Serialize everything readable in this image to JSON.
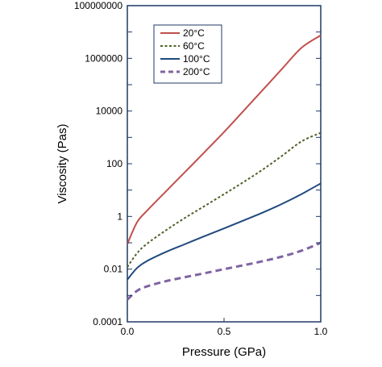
{
  "chart_data": {
    "type": "line",
    "title": "",
    "xlabel": "Pressure (GPa)",
    "ylabel": "Viscosity (Pas)",
    "xlim": [
      0,
      1
    ],
    "ylim": [
      0.0001,
      100000000
    ],
    "yscale": "log",
    "grid": false,
    "legend_position": "top-left",
    "x_ticks": [
      {
        "value": 0,
        "label": "0.0"
      },
      {
        "value": 0.5,
        "label": "0.5"
      },
      {
        "value": 1,
        "label": "1.0"
      }
    ],
    "y_ticks": [
      {
        "value": 0.0001,
        "label": "0.0001"
      },
      {
        "value": 0.01,
        "label": "0.01"
      },
      {
        "value": 1,
        "label": "1"
      },
      {
        "value": 100,
        "label": "100"
      },
      {
        "value": 10000,
        "label": "10000"
      },
      {
        "value": 1000000,
        "label": "1000000"
      },
      {
        "value": 100000000,
        "label": "100000000"
      }
    ],
    "series": [
      {
        "name": "20°C",
        "color": "#c0504d",
        "dash": "solid",
        "points": [
          [
            0,
            0.09
          ],
          [
            0.05,
            0.6
          ],
          [
            0.1,
            1.6
          ],
          [
            0.2,
            9
          ],
          [
            0.3,
            50
          ],
          [
            0.4,
            280
          ],
          [
            0.5,
            1600
          ],
          [
            0.6,
            10000
          ],
          [
            0.7,
            63000
          ],
          [
            0.8,
            400000
          ],
          [
            0.9,
            2500000
          ],
          [
            1.0,
            7500000
          ]
        ]
      },
      {
        "name": "60°C",
        "color": "#4f6228",
        "dash": "short-dash",
        "points": [
          [
            0,
            0.012
          ],
          [
            0.05,
            0.04
          ],
          [
            0.1,
            0.09
          ],
          [
            0.2,
            0.3
          ],
          [
            0.3,
            0.9
          ],
          [
            0.4,
            2.5
          ],
          [
            0.5,
            7
          ],
          [
            0.6,
            20
          ],
          [
            0.7,
            60
          ],
          [
            0.8,
            200
          ],
          [
            0.9,
            700
          ],
          [
            1.0,
            1500
          ]
        ]
      },
      {
        "name": "100°C",
        "color": "#1f497d",
        "dash": "solid",
        "points": [
          [
            0,
            0.004
          ],
          [
            0.05,
            0.011
          ],
          [
            0.1,
            0.02
          ],
          [
            0.2,
            0.045
          ],
          [
            0.3,
            0.09
          ],
          [
            0.4,
            0.18
          ],
          [
            0.5,
            0.35
          ],
          [
            0.6,
            0.7
          ],
          [
            0.7,
            1.4
          ],
          [
            0.8,
            3
          ],
          [
            0.9,
            7
          ],
          [
            1.0,
            18
          ]
        ]
      },
      {
        "name": "200°C",
        "color": "#8064a2",
        "dash": "long-dash",
        "points": [
          [
            0,
            0.0007
          ],
          [
            0.05,
            0.0015
          ],
          [
            0.1,
            0.0022
          ],
          [
            0.2,
            0.0035
          ],
          [
            0.3,
            0.005
          ],
          [
            0.4,
            0.007
          ],
          [
            0.5,
            0.01
          ],
          [
            0.6,
            0.014
          ],
          [
            0.7,
            0.02
          ],
          [
            0.8,
            0.03
          ],
          [
            0.9,
            0.05
          ],
          [
            1.0,
            0.1
          ]
        ]
      }
    ]
  }
}
